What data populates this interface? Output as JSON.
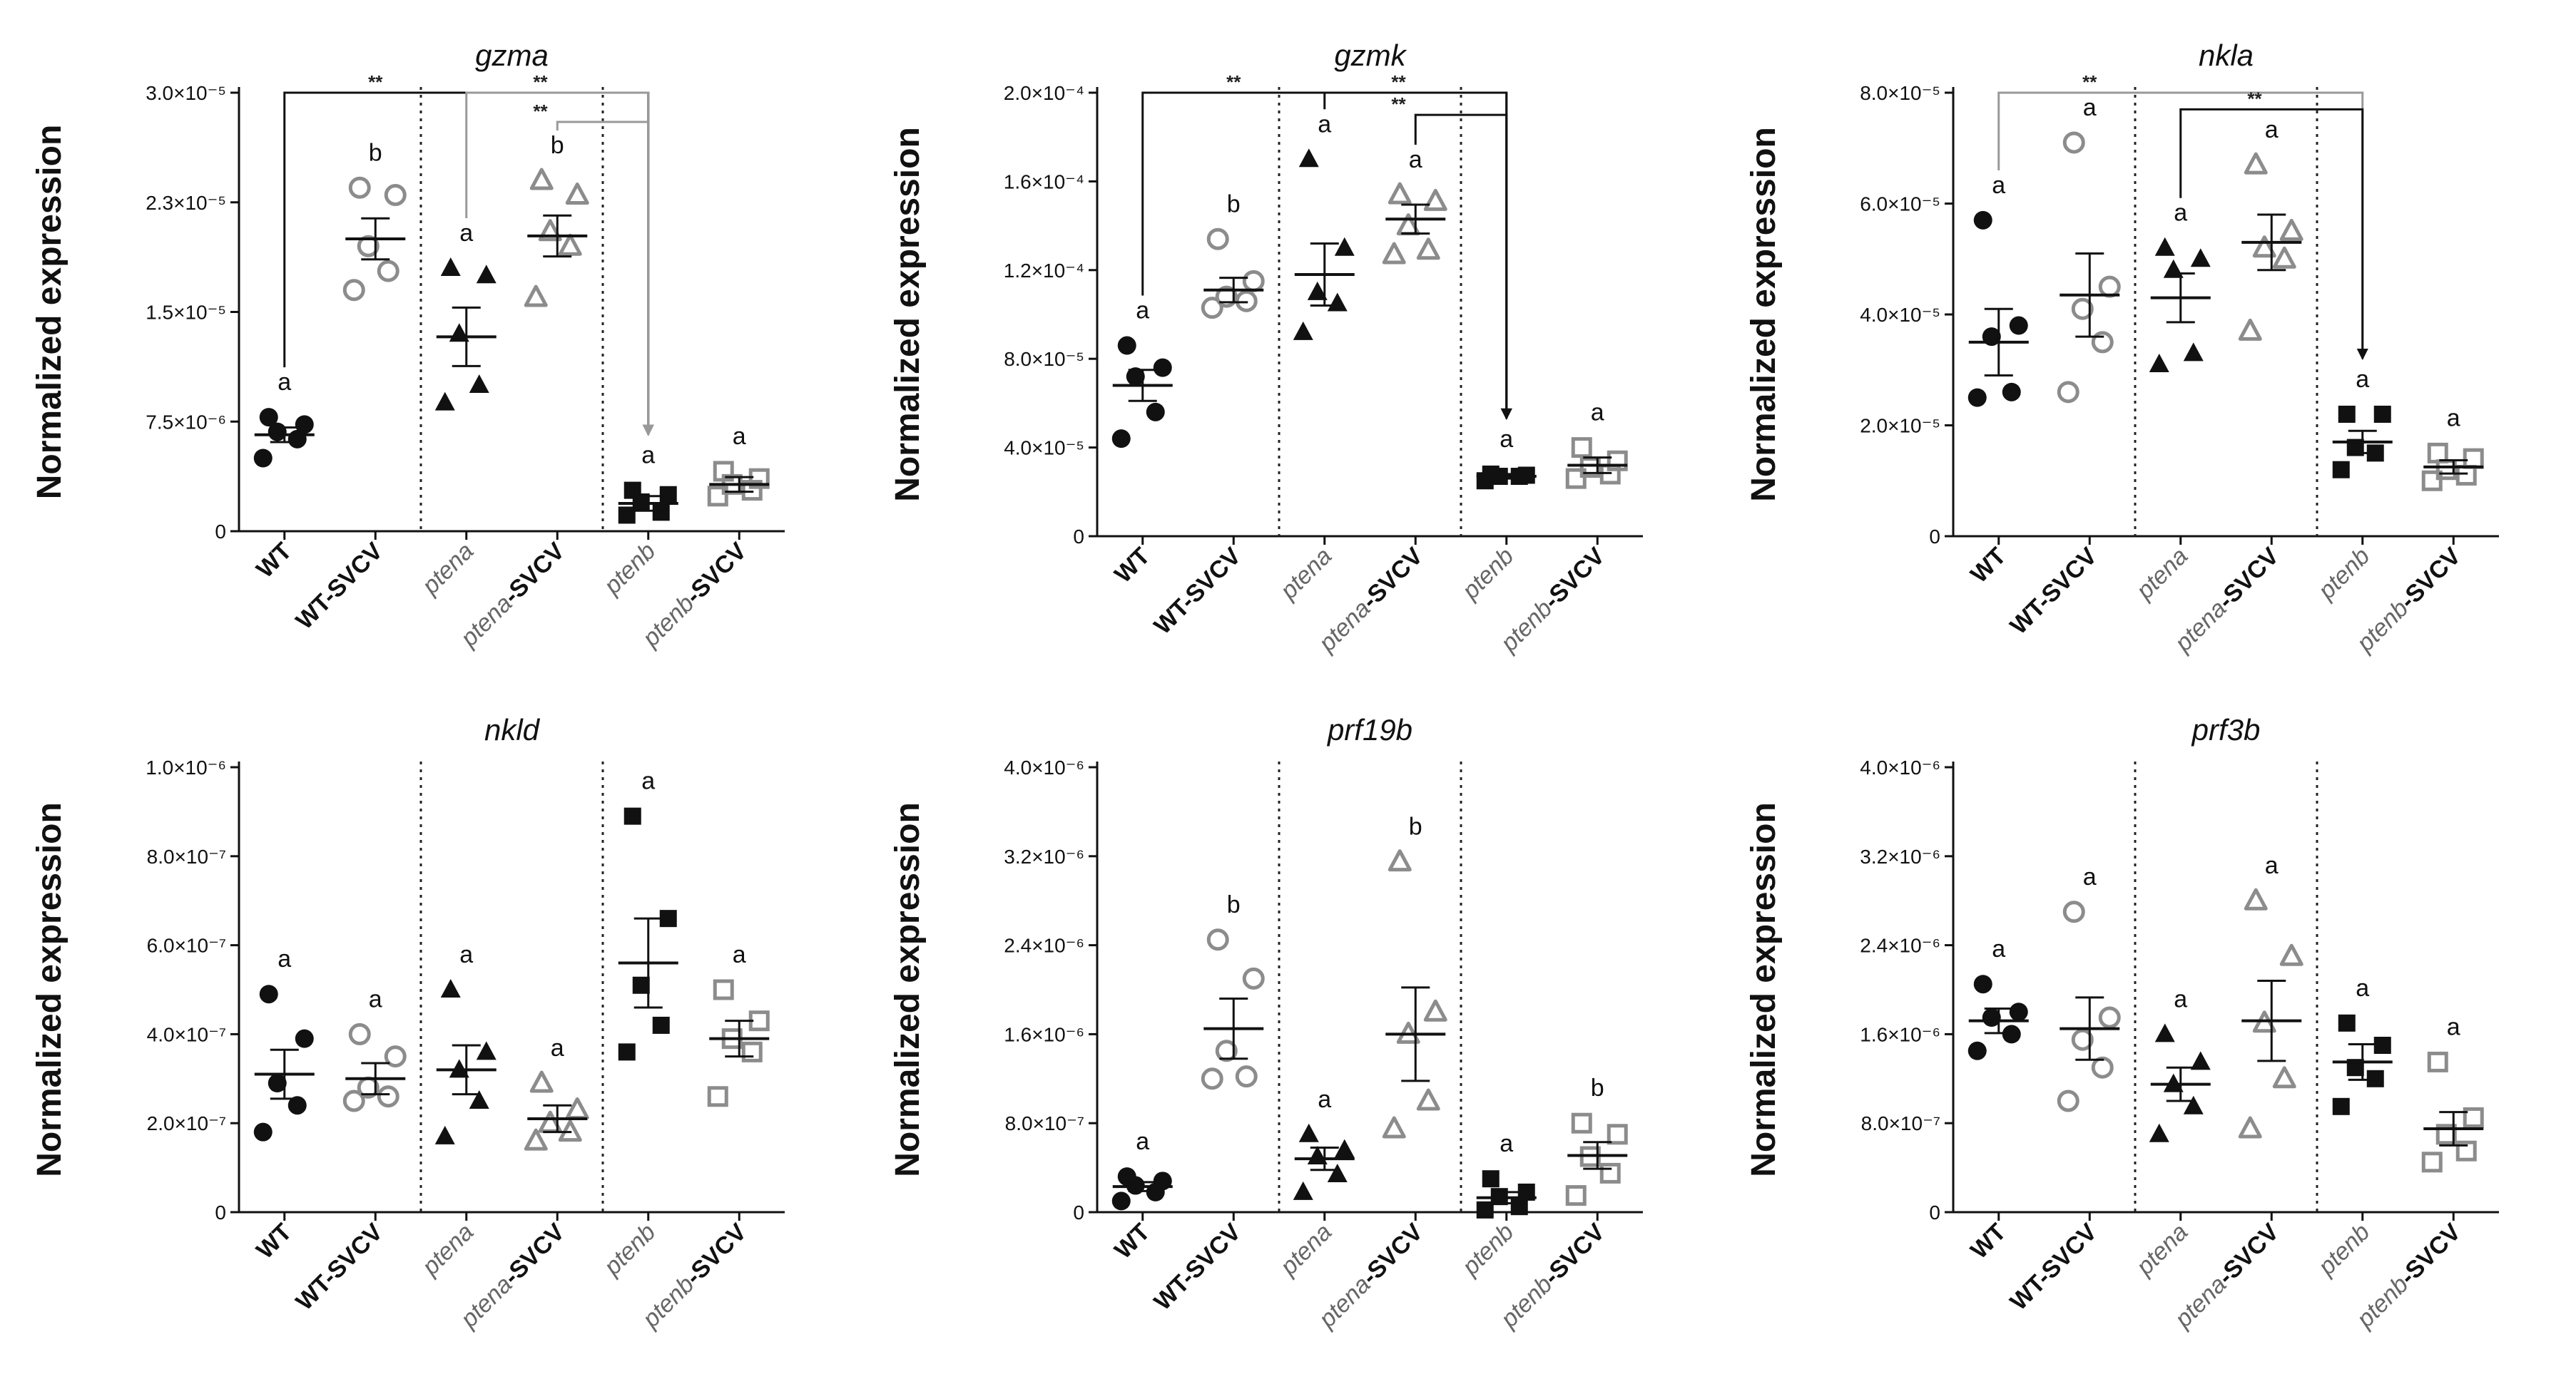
{
  "figure": {
    "categories": [
      {
        "italic": "",
        "suffix": "WT"
      },
      {
        "italic": "",
        "suffix": "WT-SVCV"
      },
      {
        "italic": "ptena",
        "suffix": ""
      },
      {
        "italic": "ptena",
        "suffix": "-SVCV"
      },
      {
        "italic": "ptenb",
        "suffix": ""
      },
      {
        "italic": "ptenb",
        "suffix": "-SVCV"
      }
    ],
    "colors": {
      "filled": "#111111",
      "open": "#8c8c8c",
      "axis": "#111111",
      "bracket_gray": "#999999"
    }
  },
  "chart_data": [
    {
      "type": "scatter",
      "title": "gzma",
      "ylabel": "Normalized expression",
      "ylim": [
        0,
        3e-05
      ],
      "yticks": [
        "0",
        "7.5×10⁻⁶",
        "1.5×10⁻⁵",
        "2.3×10⁻⁵",
        "3.0×10⁻⁵"
      ],
      "ytick_values": [
        0,
        7.5e-06,
        1.5e-05,
        2.25e-05,
        3e-05
      ],
      "series": [
        {
          "values": [
            5e-06,
            6.3e-06,
            6.8e-06,
            7.3e-06,
            7.8e-06
          ],
          "mean": 6.6e-06,
          "sem": 5e-07,
          "group": "a"
        },
        {
          "values": [
            1.65e-05,
            1.78e-05,
            1.95e-05,
            2.3e-05,
            2.35e-05
          ],
          "mean": 2e-05,
          "sem": 1.4e-06,
          "group": "b"
        },
        {
          "values": [
            8.8e-06,
            1e-05,
            1.35e-05,
            1.75e-05,
            1.8e-05
          ],
          "mean": 1.33e-05,
          "sem": 2e-06,
          "group": "a"
        },
        {
          "values": [
            1.6e-05,
            1.95e-05,
            2.05e-05,
            2.3e-05,
            2.4e-05
          ],
          "mean": 2.02e-05,
          "sem": 1.4e-06,
          "group": "b"
        },
        {
          "values": [
            1.1e-06,
            1.3e-06,
            2e-06,
            2.5e-06,
            2.8e-06
          ],
          "mean": 1.9e-06,
          "sem": 5e-07,
          "group": "a"
        },
        {
          "values": [
            2.4e-06,
            2.8e-06,
            3.2e-06,
            3.6e-06,
            4.1e-06
          ],
          "mean": 3.2e-06,
          "sem": 5e-07,
          "group": "a"
        }
      ],
      "brackets": [
        {
          "from": 0,
          "to": 4,
          "y": 3e-05,
          "label": "**",
          "color": "#111111"
        },
        {
          "from": 2,
          "to": 4,
          "y": 3e-05,
          "label": "**",
          "color": "#999999"
        },
        {
          "from": 3,
          "to": 4,
          "y": 2.8e-05,
          "label": "**",
          "color": "#999999"
        }
      ]
    },
    {
      "type": "scatter",
      "title": "gzmk",
      "ylabel": "Normalized expression",
      "ylim": [
        0,
        0.0002
      ],
      "yticks": [
        "0",
        "4.0×10⁻⁵",
        "8.0×10⁻⁵",
        "1.2×10⁻⁴",
        "1.6×10⁻⁴",
        "2.0×10⁻⁴"
      ],
      "ytick_values": [
        0,
        4e-05,
        8e-05,
        0.00012,
        0.00016,
        0.0002
      ],
      "series": [
        {
          "values": [
            4.4e-05,
            5.6e-05,
            7.2e-05,
            7.6e-05,
            8.6e-05
          ],
          "mean": 6.8e-05,
          "sem": 7e-06,
          "group": "a"
        },
        {
          "values": [
            0.000103,
            0.000106,
            0.000108,
            0.000115,
            0.000134
          ],
          "mean": 0.000111,
          "sem": 5.5e-06,
          "group": "b"
        },
        {
          "values": [
            9.2e-05,
            0.000105,
            0.00011,
            0.00013,
            0.00017
          ],
          "mean": 0.000118,
          "sem": 1.4e-05,
          "group": "a"
        },
        {
          "values": [
            0.000127,
            0.000129,
            0.00014,
            0.000151,
            0.000154
          ],
          "mean": 0.000143,
          "sem": 6.5e-06,
          "group": "a"
        },
        {
          "values": [
            2.5e-05,
            2.7e-05,
            2.7e-05,
            2.75e-05,
            2.8e-05
          ],
          "mean": 2.7e-05,
          "sem": 1e-06,
          "group": "a"
        },
        {
          "values": [
            2.6e-05,
            2.8e-05,
            3.1e-05,
            3.4e-05,
            4e-05
          ],
          "mean": 3.2e-05,
          "sem": 3.5e-06,
          "group": "a"
        }
      ],
      "brackets": [
        {
          "from": 0,
          "to": 4,
          "y": 0.0002,
          "label": "**",
          "color": "#111111"
        },
        {
          "from": 2,
          "to": 4,
          "y": 0.0002,
          "label": "**",
          "color": "#111111"
        },
        {
          "from": 3,
          "to": 4,
          "y": 0.00019,
          "label": "**",
          "color": "#111111"
        }
      ]
    },
    {
      "type": "scatter",
      "title": "nkla",
      "ylabel": "Normalized expression",
      "ylim": [
        0,
        8e-05
      ],
      "yticks": [
        "0",
        "2.0×10⁻⁵",
        "4.0×10⁻⁵",
        "6.0×10⁻⁵",
        "8.0×10⁻⁵"
      ],
      "ytick_values": [
        0,
        2e-05,
        4e-05,
        6e-05,
        8e-05
      ],
      "series": [
        {
          "values": [
            2.5e-05,
            2.6e-05,
            3.6e-05,
            3.8e-05,
            5.7e-05
          ],
          "mean": 3.5e-05,
          "sem": 6e-06,
          "group": "a"
        },
        {
          "values": [
            2.6e-05,
            3.5e-05,
            4.1e-05,
            4.5e-05,
            7.1e-05
          ],
          "mean": 4.35e-05,
          "sem": 7.5e-06,
          "group": "a"
        },
        {
          "values": [
            3.1e-05,
            3.3e-05,
            4.8e-05,
            5e-05,
            5.2e-05
          ],
          "mean": 4.3e-05,
          "sem": 4.4e-06,
          "group": "a"
        },
        {
          "values": [
            3.7e-05,
            5e-05,
            5.2e-05,
            5.5e-05,
            6.7e-05
          ],
          "mean": 5.3e-05,
          "sem": 5e-06,
          "group": "a"
        },
        {
          "values": [
            1.2e-05,
            1.5e-05,
            1.6e-05,
            2.2e-05,
            2.2e-05
          ],
          "mean": 1.7e-05,
          "sem": 2e-06,
          "group": "a"
        },
        {
          "values": [
            1e-05,
            1.1e-05,
            1.2e-05,
            1.4e-05,
            1.5e-05
          ],
          "mean": 1.25e-05,
          "sem": 1.2e-06,
          "group": "a"
        }
      ],
      "brackets": [
        {
          "from": 0,
          "to": 4,
          "y": 8e-05,
          "label": "**",
          "color": "#999999"
        },
        {
          "from": 2,
          "to": 4,
          "y": 7.7e-05,
          "label": "**",
          "color": "#111111"
        }
      ]
    },
    {
      "type": "scatter",
      "title": "nkld",
      "ylabel": "Normalized expression",
      "ylim": [
        0,
        1e-06
      ],
      "yticks": [
        "0",
        "2.0×10⁻⁷",
        "4.0×10⁻⁷",
        "6.0×10⁻⁷",
        "8.0×10⁻⁷",
        "1.0×10⁻⁶"
      ],
      "ytick_values": [
        0,
        2e-07,
        4e-07,
        6e-07,
        8e-07,
        1e-06
      ],
      "series": [
        {
          "values": [
            1.8e-07,
            2.4e-07,
            2.9e-07,
            3.9e-07,
            4.9e-07
          ],
          "mean": 3.1e-07,
          "sem": 5.5e-08,
          "group": "a"
        },
        {
          "values": [
            2.5e-07,
            2.6e-07,
            2.8e-07,
            3.5e-07,
            4e-07
          ],
          "mean": 3e-07,
          "sem": 3.5e-08,
          "group": "a"
        },
        {
          "values": [
            1.7e-07,
            2.5e-07,
            3.2e-07,
            3.6e-07,
            5e-07
          ],
          "mean": 3.2e-07,
          "sem": 5.5e-08,
          "group": "a"
        },
        {
          "values": [
            1.6e-07,
            1.8e-07,
            2e-07,
            2.3e-07,
            2.9e-07
          ],
          "mean": 2.1e-07,
          "sem": 3e-08,
          "group": "a"
        },
        {
          "values": [
            3.6e-07,
            4.2e-07,
            5.1e-07,
            6.6e-07,
            8.9e-07
          ],
          "mean": 5.6e-07,
          "sem": 1e-07,
          "group": "a"
        },
        {
          "values": [
            2.6e-07,
            3.6e-07,
            3.9e-07,
            4.3e-07,
            5e-07
          ],
          "mean": 3.9e-07,
          "sem": 4e-08,
          "group": "a"
        }
      ],
      "brackets": []
    },
    {
      "type": "scatter",
      "title": "prf19b",
      "ylabel": "Normalized expression",
      "ylim": [
        0,
        4e-06
      ],
      "yticks": [
        "0",
        "8.0×10⁻⁷",
        "1.6×10⁻⁶",
        "2.4×10⁻⁶",
        "3.2×10⁻⁶",
        "4.0×10⁻⁶"
      ],
      "ytick_values": [
        0,
        8e-07,
        1.6e-06,
        2.4e-06,
        3.2e-06,
        4e-06
      ],
      "series": [
        {
          "values": [
            1e-07,
            1.8e-07,
            2.4e-07,
            2.8e-07,
            3.2e-07
          ],
          "mean": 2.3e-07,
          "sem": 4e-08,
          "group": "a"
        },
        {
          "values": [
            1.2e-06,
            1.22e-06,
            1.45e-06,
            2.1e-06,
            2.45e-06
          ],
          "mean": 1.65e-06,
          "sem": 2.7e-07,
          "group": "b"
        },
        {
          "values": [
            1.8e-07,
            3.4e-07,
            5e-07,
            5.6e-07,
            7e-07
          ],
          "mean": 4.8e-07,
          "sem": 1e-07,
          "group": "a"
        },
        {
          "values": [
            7.5e-07,
            1e-06,
            1.6e-06,
            1.8e-06,
            3.15e-06
          ],
          "mean": 1.6e-06,
          "sem": 4.2e-07,
          "group": "b"
        },
        {
          "values": [
            2e-08,
            5e-08,
            1.4e-07,
            1.8e-07,
            3e-07
          ],
          "mean": 1.3e-07,
          "sem": 5e-08,
          "group": "a"
        },
        {
          "values": [
            1.5e-07,
            3.5e-07,
            5e-07,
            7e-07,
            8e-07
          ],
          "mean": 5.1e-07,
          "sem": 1.2e-07,
          "group": "b"
        }
      ],
      "brackets": []
    },
    {
      "type": "scatter",
      "title": "prf3b",
      "ylabel": "Normalized expression",
      "ylim": [
        0,
        4e-06
      ],
      "yticks": [
        "0",
        "8.0×10⁻⁷",
        "1.6×10⁻⁶",
        "2.4×10⁻⁶",
        "3.2×10⁻⁶",
        "4.0×10⁻⁶"
      ],
      "ytick_values": [
        0,
        8e-07,
        1.6e-06,
        2.4e-06,
        3.2e-06,
        4e-06
      ],
      "series": [
        {
          "values": [
            1.45e-06,
            1.6e-06,
            1.75e-06,
            1.8e-06,
            2.05e-06
          ],
          "mean": 1.72e-06,
          "sem": 1.1e-07,
          "group": "a"
        },
        {
          "values": [
            1e-06,
            1.3e-06,
            1.55e-06,
            1.75e-06,
            2.7e-06
          ],
          "mean": 1.65e-06,
          "sem": 2.8e-07,
          "group": "a"
        },
        {
          "values": [
            7e-07,
            9.5e-07,
            1.15e-06,
            1.35e-06,
            1.6e-06
          ],
          "mean": 1.15e-06,
          "sem": 1.5e-07,
          "group": "a"
        },
        {
          "values": [
            7.5e-07,
            1.2e-06,
            1.7e-06,
            2.3e-06,
            2.8e-06
          ],
          "mean": 1.72e-06,
          "sem": 3.6e-07,
          "group": "a"
        },
        {
          "values": [
            9.5e-07,
            1.2e-06,
            1.3e-06,
            1.5e-06,
            1.7e-06
          ],
          "mean": 1.35e-06,
          "sem": 1.6e-07,
          "group": "a"
        },
        {
          "values": [
            4.5e-07,
            5.5e-07,
            7e-07,
            8.5e-07,
            1.35e-06
          ],
          "mean": 7.5e-07,
          "sem": 1.5e-07,
          "group": "a"
        }
      ],
      "brackets": []
    }
  ]
}
